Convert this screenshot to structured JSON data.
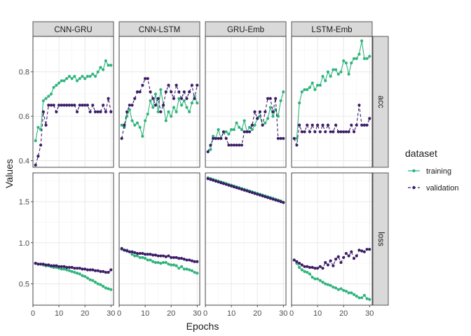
{
  "chart_data": {
    "type": "line",
    "facets": {
      "columns": [
        "CNN-GRU",
        "CNN-LSTM",
        "GRU-Emb",
        "LSTM-Emb"
      ],
      "rows": [
        "acc",
        "loss"
      ],
      "free_y": true
    },
    "xlabel": "Epochs",
    "ylabel": "Values",
    "xlim": [
      0,
      31
    ],
    "xticks": [
      0,
      10,
      20,
      30
    ],
    "ylim": {
      "acc": [
        0.37,
        0.96
      ],
      "loss": [
        0.24,
        1.85
      ]
    },
    "yticks": {
      "acc": [
        "0.4",
        "0.6",
        "0.8"
      ],
      "loss": [
        "0.5",
        "1.0",
        "1.5"
      ]
    },
    "grid": true,
    "legend": {
      "title": "dataset",
      "position": "right",
      "entries": [
        "training",
        "validation"
      ]
    },
    "colors": {
      "training": "#2fb47c",
      "validation": "#3b1c66"
    },
    "x": [
      1,
      2,
      3,
      4,
      5,
      6,
      7,
      8,
      9,
      10,
      11,
      12,
      13,
      14,
      15,
      16,
      17,
      18,
      19,
      20,
      21,
      22,
      23,
      24,
      25,
      26,
      27,
      28,
      29,
      30
    ],
    "panels": [
      {
        "model": "CNN-GRU",
        "metric": "acc",
        "series": [
          {
            "name": "training",
            "values": [
              0.49,
              0.55,
              0.54,
              0.67,
              0.68,
              0.69,
              0.7,
              0.73,
              0.74,
              0.75,
              0.76,
              0.76,
              0.77,
              0.78,
              0.77,
              0.78,
              0.76,
              0.77,
              0.78,
              0.77,
              0.78,
              0.78,
              0.79,
              0.78,
              0.8,
              0.82,
              0.81,
              0.85,
              0.83,
              0.83
            ]
          },
          {
            "name": "validation",
            "values": [
              0.38,
              0.42,
              0.47,
              0.62,
              0.56,
              0.65,
              0.65,
              0.65,
              0.62,
              0.65,
              0.65,
              0.65,
              0.65,
              0.65,
              0.65,
              0.65,
              0.62,
              0.65,
              0.65,
              0.65,
              0.65,
              0.62,
              0.65,
              0.62,
              0.62,
              0.62,
              0.65,
              0.62,
              0.68,
              0.62
            ]
          }
        ]
      },
      {
        "model": "CNN-LSTM",
        "metric": "acc",
        "series": [
          {
            "name": "training",
            "values": [
              0.56,
              0.55,
              0.6,
              0.63,
              0.58,
              0.56,
              0.57,
              0.55,
              0.51,
              0.58,
              0.61,
              0.67,
              0.64,
              0.7,
              0.62,
              0.72,
              0.65,
              0.58,
              0.62,
              0.6,
              0.64,
              0.62,
              0.68,
              0.65,
              0.67,
              0.64,
              0.62,
              0.66,
              0.69,
              0.66
            ]
          },
          {
            "name": "validation",
            "values": [
              0.5,
              0.56,
              0.62,
              0.65,
              0.65,
              0.68,
              0.71,
              0.71,
              0.74,
              0.77,
              0.77,
              0.71,
              0.68,
              0.65,
              0.68,
              0.62,
              0.65,
              0.71,
              0.74,
              0.71,
              0.68,
              0.74,
              0.71,
              0.68,
              0.71,
              0.68,
              0.71,
              0.74,
              0.68,
              0.74
            ]
          }
        ]
      },
      {
        "model": "GRU-Emb",
        "metric": "acc",
        "series": [
          {
            "name": "training",
            "values": [
              0.44,
              0.45,
              0.51,
              0.5,
              0.54,
              0.5,
              0.53,
              0.53,
              0.52,
              0.54,
              0.54,
              0.57,
              0.55,
              0.54,
              0.58,
              0.53,
              0.55,
              0.54,
              0.56,
              0.59,
              0.6,
              0.56,
              0.57,
              0.59,
              0.64,
              0.6,
              0.63,
              0.6,
              0.67,
              0.71
            ]
          },
          {
            "name": "validation",
            "values": [
              0.44,
              0.47,
              0.5,
              0.5,
              0.5,
              0.5,
              0.53,
              0.5,
              0.47,
              0.47,
              0.47,
              0.47,
              0.47,
              0.47,
              0.53,
              0.53,
              0.53,
              0.56,
              0.62,
              0.59,
              0.62,
              0.56,
              0.62,
              0.68,
              0.68,
              0.62,
              0.68,
              0.5,
              0.5,
              0.5
            ]
          }
        ]
      },
      {
        "model": "LSTM-Emb",
        "metric": "acc",
        "series": [
          {
            "name": "training",
            "values": [
              0.5,
              0.5,
              0.66,
              0.71,
              0.72,
              0.72,
              0.73,
              0.75,
              0.72,
              0.74,
              0.74,
              0.78,
              0.76,
              0.8,
              0.78,
              0.81,
              0.81,
              0.79,
              0.8,
              0.85,
              0.84,
              0.79,
              0.84,
              0.86,
              0.86,
              0.88,
              0.94,
              0.86,
              0.86,
              0.87
            ]
          },
          {
            "name": "validation",
            "values": [
              0.5,
              0.47,
              0.56,
              0.53,
              0.53,
              0.56,
              0.53,
              0.56,
              0.53,
              0.56,
              0.53,
              0.56,
              0.53,
              0.56,
              0.53,
              0.53,
              0.56,
              0.53,
              0.53,
              0.53,
              0.53,
              0.53,
              0.56,
              0.53,
              0.56,
              0.65,
              0.56,
              0.56,
              0.56,
              0.59
            ]
          }
        ]
      },
      {
        "model": "CNN-GRU",
        "metric": "loss",
        "series": [
          {
            "name": "training",
            "values": [
              0.75,
              0.74,
              0.74,
              0.73,
              0.72,
              0.72,
              0.71,
              0.7,
              0.7,
              0.69,
              0.68,
              0.68,
              0.67,
              0.66,
              0.65,
              0.64,
              0.63,
              0.62,
              0.6,
              0.59,
              0.57,
              0.55,
              0.54,
              0.52,
              0.5,
              0.49,
              0.47,
              0.45,
              0.44,
              0.43
            ]
          },
          {
            "name": "validation",
            "values": [
              0.75,
              0.74,
              0.74,
              0.74,
              0.73,
              0.73,
              0.72,
              0.72,
              0.72,
              0.71,
              0.71,
              0.71,
              0.7,
              0.7,
              0.7,
              0.69,
              0.69,
              0.69,
              0.68,
              0.68,
              0.67,
              0.67,
              0.67,
              0.66,
              0.66,
              0.65,
              0.65,
              0.64,
              0.64,
              0.67
            ]
          }
        ]
      },
      {
        "model": "CNN-LSTM",
        "metric": "loss",
        "series": [
          {
            "name": "training",
            "values": [
              0.92,
              0.91,
              0.91,
              0.89,
              0.86,
              0.84,
              0.84,
              0.82,
              0.82,
              0.81,
              0.79,
              0.79,
              0.77,
              0.76,
              0.76,
              0.75,
              0.76,
              0.76,
              0.74,
              0.73,
              0.73,
              0.72,
              0.69,
              0.71,
              0.68,
              0.68,
              0.67,
              0.66,
              0.64,
              0.63
            ]
          },
          {
            "name": "validation",
            "values": [
              0.93,
              0.91,
              0.9,
              0.89,
              0.89,
              0.88,
              0.87,
              0.87,
              0.87,
              0.86,
              0.86,
              0.86,
              0.85,
              0.85,
              0.84,
              0.84,
              0.84,
              0.83,
              0.84,
              0.82,
              0.82,
              0.82,
              0.81,
              0.81,
              0.8,
              0.79,
              0.79,
              0.78,
              0.77,
              0.77
            ]
          }
        ]
      },
      {
        "model": "GRU-Emb",
        "metric": "loss",
        "series": [
          {
            "name": "training",
            "values": [
              1.79,
              1.78,
              1.77,
              1.76,
              1.75,
              1.74,
              1.73,
              1.72,
              1.71,
              1.7,
              1.69,
              1.68,
              1.67,
              1.66,
              1.65,
              1.64,
              1.63,
              1.62,
              1.61,
              1.6,
              1.59,
              1.58,
              1.57,
              1.56,
              1.55,
              1.54,
              1.53,
              1.52,
              1.51,
              1.49
            ]
          },
          {
            "name": "validation",
            "values": [
              1.78,
              1.77,
              1.76,
              1.75,
              1.74,
              1.73,
              1.72,
              1.71,
              1.7,
              1.69,
              1.68,
              1.67,
              1.66,
              1.65,
              1.64,
              1.63,
              1.62,
              1.61,
              1.6,
              1.59,
              1.58,
              1.57,
              1.56,
              1.55,
              1.54,
              1.53,
              1.52,
              1.51,
              1.5,
              1.49
            ]
          }
        ]
      },
      {
        "model": "LSTM-Emb",
        "metric": "loss",
        "series": [
          {
            "name": "training",
            "values": [
              0.79,
              0.75,
              0.7,
              0.67,
              0.65,
              0.64,
              0.62,
              0.58,
              0.56,
              0.56,
              0.54,
              0.52,
              0.5,
              0.49,
              0.48,
              0.46,
              0.45,
              0.43,
              0.44,
              0.42,
              0.41,
              0.39,
              0.39,
              0.37,
              0.35,
              0.33,
              0.33,
              0.36,
              0.32,
              0.31
            ]
          },
          {
            "name": "validation",
            "values": [
              0.79,
              0.77,
              0.75,
              0.73,
              0.71,
              0.71,
              0.7,
              0.7,
              0.69,
              0.69,
              0.71,
              0.69,
              0.76,
              0.73,
              0.78,
              0.72,
              0.8,
              0.83,
              0.76,
              0.82,
              0.87,
              0.84,
              0.89,
              0.81,
              0.84,
              0.91,
              0.9,
              0.89,
              0.92,
              0.92
            ]
          }
        ]
      }
    ]
  }
}
